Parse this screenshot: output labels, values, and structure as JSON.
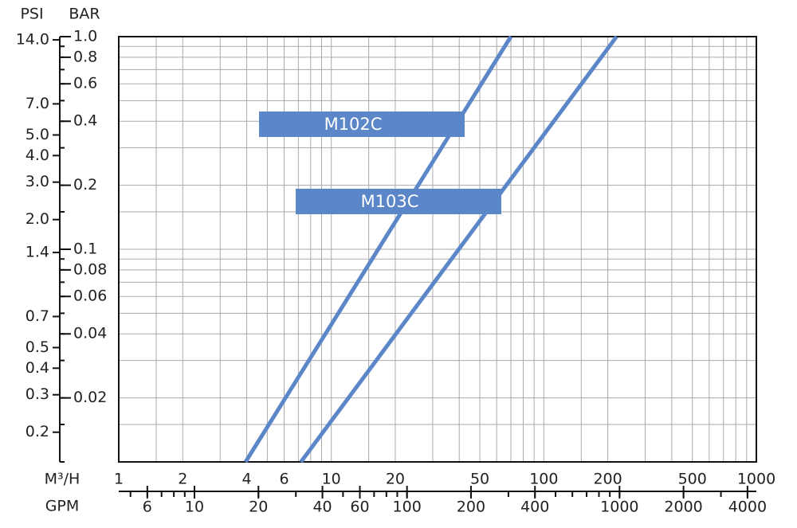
{
  "chart_data": {
    "type": "line",
    "y_label": "BAR",
    "y2_label": "PSI",
    "x_label": "M³/H",
    "x2_label": "GPM",
    "log_x": true,
    "log_y": true,
    "grid": true,
    "xlim": [
      1,
      1000
    ],
    "xticks": [
      1,
      2,
      4,
      6,
      10,
      20,
      50,
      100,
      200,
      500,
      1000
    ],
    "xgrid": [
      1,
      1.5,
      2,
      3,
      4,
      5,
      6,
      7,
      8,
      9,
      10,
      15,
      20,
      30,
      40,
      50,
      60,
      70,
      80,
      90,
      100,
      150,
      200,
      300,
      400,
      500,
      600,
      700,
      800,
      900,
      1000
    ],
    "x2lim": [
      4.403,
      4403
    ],
    "x2ticks": [
      6,
      10,
      20,
      40,
      60,
      100,
      200,
      400,
      1000,
      2000,
      4000
    ],
    "x2minor": [
      5,
      6,
      7,
      8,
      9,
      10,
      20,
      30,
      40,
      50,
      60,
      70,
      80,
      90,
      100,
      200,
      300,
      400,
      500,
      600,
      700,
      800,
      900,
      1000,
      2000,
      3000,
      4000
    ],
    "ylim": [
      0.01,
      1
    ],
    "yticks": [
      {
        "value": 1,
        "label": "1.0"
      },
      0.8,
      0.6,
      0.4,
      0.2,
      0.1,
      0.08,
      0.06,
      0.04,
      0.02
    ],
    "ygrid": [
      0.01,
      0.015,
      0.02,
      0.03,
      0.04,
      0.05,
      0.06,
      0.07,
      0.08,
      0.09,
      0.1,
      0.15,
      0.2,
      0.3,
      0.4,
      0.5,
      0.6,
      0.7,
      0.8,
      0.9,
      1
    ],
    "y2lim": [
      0.145,
      14.5
    ],
    "y2ticks": [
      {
        "value": 14,
        "label": "14.0"
      },
      {
        "value": 7,
        "label": "7.0"
      },
      {
        "value": 5,
        "label": "5.0"
      },
      {
        "value": 4,
        "label": "4.0"
      },
      {
        "value": 3,
        "label": "3.0"
      },
      {
        "value": 2,
        "label": "2.0"
      },
      1.4,
      0.7,
      0.5,
      0.4,
      0.3,
      0.2
    ],
    "series": [
      {
        "name": "M102C",
        "color": "#5b86c8",
        "x": [
          3.95,
          70
        ],
        "values": [
          0.01,
          1
        ]
      },
      {
        "name": "M103C",
        "color": "#5b86c8",
        "x": [
          7.2,
          220
        ],
        "values": [
          0.01,
          1
        ]
      }
    ]
  }
}
